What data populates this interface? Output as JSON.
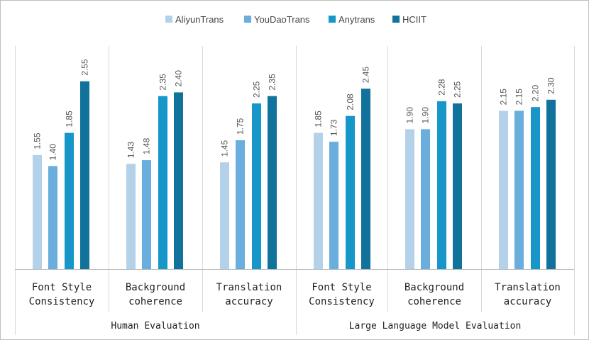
{
  "chart_data": {
    "type": "bar",
    "title": "",
    "xlabel": "",
    "ylabel": "",
    "ylim": [
      0,
      3
    ],
    "grid": false,
    "legend_position": "top-center",
    "groups": [
      "Human Evaluation",
      "Large Language Model Evaluation"
    ],
    "categories": [
      "Font Style Consistency",
      "Background coherence",
      "Translation accuracy",
      "Font Style Consistency",
      "Background coherence",
      "Translation accuracy"
    ],
    "category_lines": [
      [
        "Font Style",
        "Consistency"
      ],
      [
        "Background",
        "coherence"
      ],
      [
        "Translation",
        "accuracy"
      ],
      [
        "Font Style",
        "Consistency"
      ],
      [
        "Background",
        "coherence"
      ],
      [
        "Translation",
        "accuracy"
      ]
    ],
    "series": [
      {
        "name": "AliyunTrans",
        "color": "#b4d1ea",
        "values": [
          1.55,
          1.43,
          1.45,
          1.85,
          1.9,
          2.15
        ],
        "labels": [
          "1.55",
          "1.43",
          "1.45",
          "1.85",
          "1.90",
          "2.15"
        ]
      },
      {
        "name": "YouDaoTrans",
        "color": "#6aaedd",
        "values": [
          1.4,
          1.48,
          1.75,
          1.73,
          1.9,
          2.15
        ],
        "labels": [
          "1.40",
          "1.48",
          "1.75",
          "1.73",
          "1.90",
          "2.15"
        ]
      },
      {
        "name": "Anytrans",
        "color": "#1796c9",
        "values": [
          1.85,
          2.35,
          2.25,
          2.08,
          2.28,
          2.2
        ],
        "labels": [
          "1.85",
          "2.35",
          "2.25",
          "2.08",
          "2.28",
          "2.20"
        ]
      },
      {
        "name": "HCIIT",
        "color": "#11729b",
        "values": [
          2.55,
          2.4,
          2.35,
          2.45,
          2.25,
          2.3
        ],
        "labels": [
          "2.55",
          "2.40",
          "2.35",
          "2.45",
          "2.25",
          "2.30"
        ]
      }
    ]
  }
}
